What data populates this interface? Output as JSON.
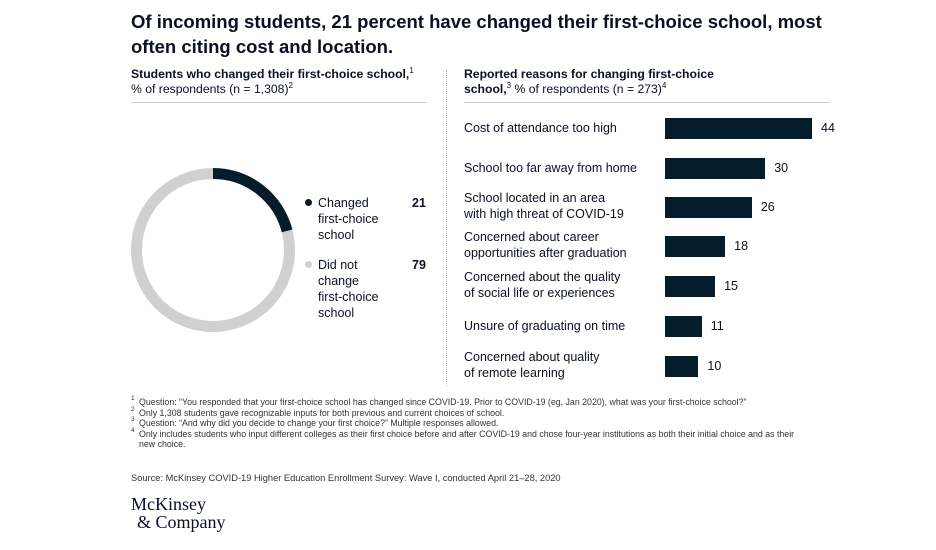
{
  "title": "Of incoming students, 21 percent have changed their first-choice school, most often citing cost and location.",
  "left_header": {
    "bold": "Students who changed their first-choice school,",
    "sup1": "1",
    "rest": " % of respondents (n = 1,308)",
    "sup2": "2"
  },
  "right_header": {
    "bold": "Reported reasons for changing first-choice school,",
    "sup1": "3",
    "rest": " % of respondents (n = 273)",
    "sup2": "4"
  },
  "colors": {
    "navy": "#051c2c",
    "gray": "#d0d0d0"
  },
  "chart_data": [
    {
      "type": "pie",
      "variant": "donut",
      "title": "Students who changed their first-choice school, % of respondents (n = 1,308)",
      "slices": [
        {
          "label": "Changed\nfirst-choice\nschool",
          "value": 21,
          "color": "#051c2c"
        },
        {
          "label": "Did not\nchange\nfirst-choice\nschool",
          "value": 79,
          "color": "#d0d0d0"
        }
      ]
    },
    {
      "type": "bar",
      "orientation": "horizontal",
      "title": "Reported reasons for changing first-choice school, % of respondents (n = 273)",
      "categories": [
        "Cost of attendance too high",
        "School too far away from home",
        "School located in an area\nwith high threat of COVID-19",
        "Concerned about career\nopportunities after graduation",
        "Concerned about the quality\nof social life or experiences",
        "Unsure of graduating on time",
        "Concerned about quality\nof remote learning"
      ],
      "values": [
        44,
        30,
        26,
        18,
        15,
        11,
        10
      ],
      "color": "#051c2c"
    }
  ],
  "footnotes": [
    {
      "mark": "1",
      "text": "Question: “You responded that your first-choice school has changed since COVID-19. Prior to COVID-19 (eg, Jan 2020), what was your first-choice school?”"
    },
    {
      "mark": "2",
      "text": "Only 1,308 students gave recognizable inputs for both previous and current choices of school."
    },
    {
      "mark": "3",
      "text": "Question: “And why did you decide to change your first choice?” Multiple responses allowed."
    },
    {
      "mark": "4",
      "text": "Only includes students who input different colleges as their first choice before and after COVID-19 and chose four-year institutions as both their initial choice and as their new choice."
    }
  ],
  "source": "Source: McKinsey COVID-19 Higher Education Enrollment Survey: Wave I, conducted April 21–28, 2020",
  "logo": {
    "line1": "McKinsey",
    "line2": "& Company"
  }
}
